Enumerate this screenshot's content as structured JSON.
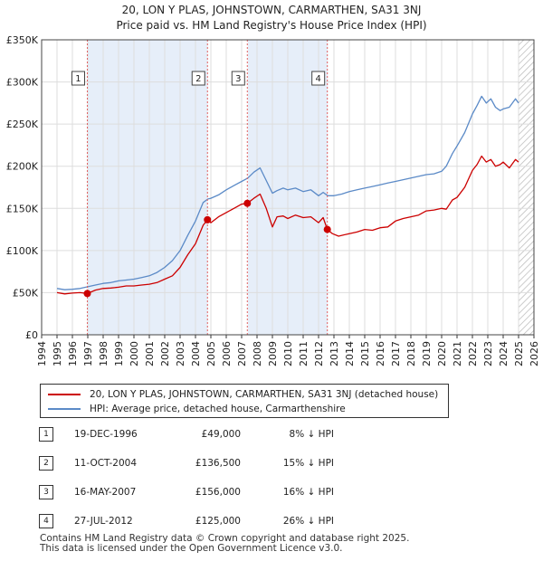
{
  "chart_data": {
    "type": "line",
    "title": "20, LON Y PLAS, JOHNSTOWN, CARMARTHEN, SA31 3NJ",
    "subtitle": "Price paid vs. HM Land Registry's House Price Index (HPI)",
    "xlim": [
      1994,
      2026
    ],
    "ylim": [
      0,
      350000
    ],
    "x_ticks": [
      "1994",
      "1995",
      "1996",
      "1997",
      "1998",
      "1999",
      "2000",
      "2001",
      "2002",
      "2003",
      "2004",
      "2005",
      "2006",
      "2007",
      "2008",
      "2009",
      "2010",
      "2011",
      "2012",
      "2013",
      "2014",
      "2015",
      "2016",
      "2017",
      "2018",
      "2019",
      "2020",
      "2021",
      "2022",
      "2023",
      "2024",
      "2025",
      "2026"
    ],
    "y_ticks": [
      {
        "value": 0,
        "label": "£0"
      },
      {
        "value": 50000,
        "label": "£50K"
      },
      {
        "value": 100000,
        "label": "£100K"
      },
      {
        "value": 150000,
        "label": "£150K"
      },
      {
        "value": 200000,
        "label": "£200K"
      },
      {
        "value": 250000,
        "label": "£250K"
      },
      {
        "value": 300000,
        "label": "£300K"
      },
      {
        "value": 350000,
        "label": "£350K"
      }
    ],
    "shaded_regions": [
      {
        "x0": 1997.0,
        "x1": 2004.8,
        "label": "1-2"
      },
      {
        "x0": 2007.4,
        "x1": 2012.6,
        "label": "3-4"
      }
    ],
    "hatched_from": 2025.0,
    "series": [
      {
        "name": "20, LON Y PLAS, JOHNSTOWN, CARMARTHEN, SA31 3NJ (detached house)",
        "color": "#cc0000",
        "x": [
          1995.0,
          1995.5,
          1996.0,
          1996.5,
          1996.97,
          1997.5,
          1998.0,
          1998.5,
          1999.0,
          1999.5,
          2000.0,
          2000.5,
          2001.0,
          2001.5,
          2002.0,
          2002.5,
          2003.0,
          2003.5,
          2004.0,
          2004.5,
          2004.78,
          2005.0,
          2005.5,
          2006.0,
          2006.5,
          2007.0,
          2007.37,
          2007.8,
          2008.2,
          2008.6,
          2009.0,
          2009.3,
          2009.7,
          2010.0,
          2010.5,
          2011.0,
          2011.5,
          2012.0,
          2012.3,
          2012.57,
          2012.9,
          2013.3,
          2014.0,
          2014.5,
          2015.0,
          2015.5,
          2016.0,
          2016.5,
          2017.0,
          2017.5,
          2018.0,
          2018.5,
          2019.0,
          2019.5,
          2020.0,
          2020.3,
          2020.7,
          2021.0,
          2021.5,
          2022.0,
          2022.3,
          2022.6,
          2022.9,
          2023.2,
          2023.5,
          2023.8,
          2024.0,
          2024.4,
          2024.8,
          2025.0
        ],
        "values": [
          50000,
          48500,
          49500,
          50000,
          49000,
          53000,
          55000,
          55500,
          56500,
          58000,
          58000,
          59000,
          60000,
          62000,
          66000,
          70000,
          80000,
          95000,
          108000,
          130000,
          136500,
          133000,
          140000,
          145000,
          150000,
          155000,
          156000,
          162000,
          167000,
          150000,
          128000,
          140000,
          141000,
          138000,
          142000,
          139000,
          140000,
          133000,
          139000,
          125000,
          120000,
          117000,
          120000,
          122000,
          125000,
          124000,
          127000,
          128000,
          135000,
          138000,
          140000,
          142000,
          147000,
          148000,
          150000,
          149000,
          160000,
          163000,
          175000,
          195000,
          202000,
          212000,
          205000,
          208000,
          200000,
          202000,
          205000,
          198000,
          208000,
          205000
        ]
      },
      {
        "name": "HPI: Average price, detached house, Carmarthenshire",
        "color": "#5b8ac7",
        "x": [
          1995.0,
          1995.5,
          1996.0,
          1996.5,
          1997.0,
          1997.5,
          1998.0,
          1998.5,
          1999.0,
          1999.5,
          2000.0,
          2000.5,
          2001.0,
          2001.5,
          2002.0,
          2002.5,
          2003.0,
          2003.5,
          2004.0,
          2004.5,
          2004.8,
          2005.0,
          2005.5,
          2006.0,
          2006.5,
          2007.0,
          2007.4,
          2007.8,
          2008.2,
          2008.6,
          2009.0,
          2009.3,
          2009.7,
          2010.0,
          2010.5,
          2011.0,
          2011.5,
          2012.0,
          2012.3,
          2012.6,
          2013.0,
          2013.5,
          2014.0,
          2014.5,
          2015.0,
          2015.5,
          2016.0,
          2016.5,
          2017.0,
          2017.5,
          2018.0,
          2018.5,
          2019.0,
          2019.5,
          2020.0,
          2020.3,
          2020.7,
          2021.0,
          2021.5,
          2022.0,
          2022.3,
          2022.6,
          2022.9,
          2023.2,
          2023.5,
          2023.8,
          2024.0,
          2024.4,
          2024.8,
          2025.0
        ],
        "values": [
          55000,
          53500,
          54000,
          55000,
          57000,
          59000,
          61000,
          62000,
          64000,
          65000,
          66000,
          68000,
          70000,
          74000,
          80000,
          88000,
          100000,
          118000,
          135000,
          157000,
          161000,
          162000,
          166000,
          172000,
          177000,
          182000,
          186000,
          193000,
          198000,
          183000,
          168000,
          171000,
          174000,
          172000,
          174000,
          170000,
          172000,
          165000,
          169000,
          165000,
          165000,
          167000,
          170000,
          172000,
          174000,
          176000,
          178000,
          180000,
          182000,
          184000,
          186000,
          188000,
          190000,
          191000,
          194000,
          200000,
          215000,
          224000,
          240000,
          262000,
          272000,
          283000,
          275000,
          280000,
          270000,
          266000,
          268000,
          270000,
          280000,
          275000
        ]
      }
    ],
    "markers": [
      {
        "label": "1",
        "x": 1996.97,
        "y": 49000
      },
      {
        "label": "2",
        "x": 2004.78,
        "y": 136500
      },
      {
        "label": "3",
        "x": 2007.37,
        "y": 156000
      },
      {
        "label": "4",
        "x": 2012.57,
        "y": 125000
      }
    ]
  },
  "legend": {
    "property_label": "20, LON Y PLAS, JOHNSTOWN, CARMARTHEN, SA31 3NJ (detached house)",
    "hpi_label": "HPI: Average price, detached house, Carmarthenshire"
  },
  "sales": [
    {
      "num": "1",
      "date": "19-DEC-1996",
      "price": "£49,000",
      "diff": "8% ↓ HPI"
    },
    {
      "num": "2",
      "date": "11-OCT-2004",
      "price": "£136,500",
      "diff": "15% ↓ HPI"
    },
    {
      "num": "3",
      "date": "16-MAY-2007",
      "price": "£156,000",
      "diff": "16% ↓ HPI"
    },
    {
      "num": "4",
      "date": "27-JUL-2012",
      "price": "£125,000",
      "diff": "26% ↓ HPI"
    }
  ],
  "footer": {
    "line1": "Contains HM Land Registry data © Crown copyright and database right 2025.",
    "line2": "This data is licensed under the Open Government Licence v3.0."
  }
}
